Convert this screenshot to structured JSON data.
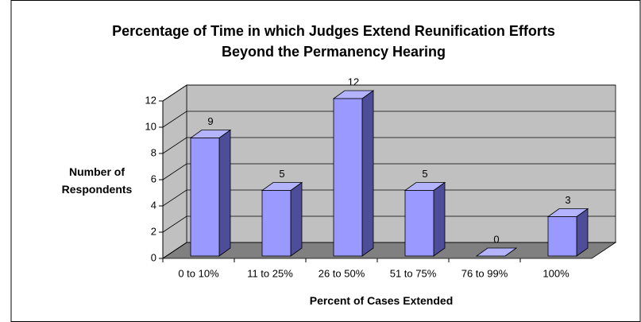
{
  "chart_data": {
    "type": "bar3d",
    "title": "Percentage of Time in which Judges Extend Reunification Efforts Beyond the Permanency Hearing",
    "xlabel": "Percent of Cases Extended",
    "ylabel": "Number of Respondents",
    "categories": [
      "0 to 10%",
      "11 to 25%",
      "26 to 50%",
      "51 to 75%",
      "76 to 99%",
      "100%"
    ],
    "values": [
      9,
      5,
      12,
      5,
      0,
      3
    ],
    "color": "#9999ff",
    "ylim": [
      0,
      12
    ],
    "yticks": [
      0,
      2,
      4,
      6,
      8,
      10,
      12
    ],
    "grid": true
  }
}
